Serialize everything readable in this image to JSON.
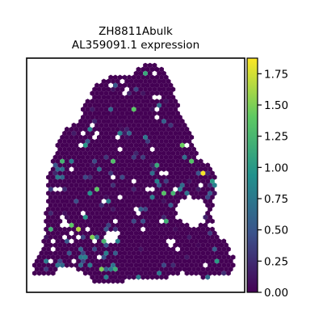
{
  "chart_data": {
    "type": "scatter",
    "title": "ZH8811Abulk\nAL359091.1 expression",
    "title_lines": [
      "ZH8811Abulk",
      "AL359091.1 expression"
    ],
    "xlabel": "",
    "ylabel": "",
    "x_ticks_shown": false,
    "y_ticks_shown": false,
    "grid": false,
    "legend": "none",
    "marker": "hexagon",
    "colormap": "viridis",
    "colormap_stops": [
      "#440154",
      "#3b528b",
      "#21918c",
      "#5ec962",
      "#fde725"
    ],
    "colorbar": {
      "range": [
        0.0,
        1.875
      ],
      "ticks": [
        "0.00",
        "0.25",
        "0.50",
        "0.75",
        "1.00",
        "1.25",
        "1.50",
        "1.75"
      ]
    }
  }
}
